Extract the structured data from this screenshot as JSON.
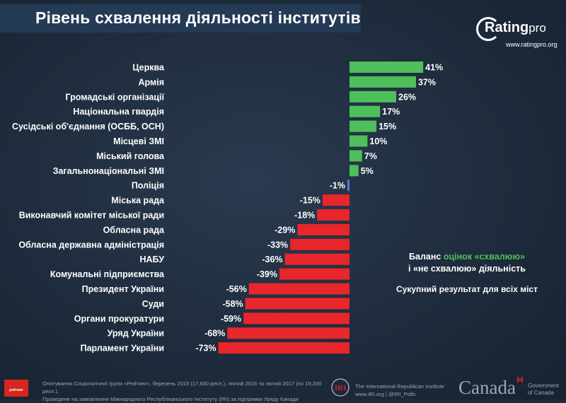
{
  "header": {
    "title": "Рівень схвалення діяльності інститутів",
    "logo_brand": "Rating",
    "logo_brand_suffix": "pro",
    "logo_url": "www.ratingpro.org"
  },
  "legend": {
    "line1_prefix": "Баланс ",
    "line1_accent": "оцінок «схвалюю»",
    "line2": "і «не схвалюю» діяльність",
    "subtitle": "Сукупний результат для всіх міст"
  },
  "footer": {
    "badge_text": "рейтинг",
    "note_line1": "Опитування Соціологічної групи «Рейтинг», березень 2015 (17,600 респ.), лютий 2016 та лютий 2017 (по 19,200 респ.).",
    "note_line2": "Проведене на замовлення Міжнародного Республіканського Інституту (IRI) за підтримки Уряду Канади",
    "iri_line1": "The International Republican Institute",
    "iri_line2": "www.IRI.org | @IRI_Polls",
    "canada_wordmark": "Canada",
    "gov_line1": "Government",
    "gov_line2": "of Canada"
  },
  "colors": {
    "positive": "#4fbf5a",
    "negative": "#e8262b",
    "near_zero": "#4a7fd4",
    "text": "#ffffff"
  },
  "chart_data": {
    "type": "bar",
    "orientation": "horizontal",
    "title": "Рівень схвалення діяльності інститутів",
    "categories": [
      "Церква",
      "Армія",
      "Громадські організації",
      "Національна гвардія",
      "Сусідські об'єднання (ОСББ, ОСН)",
      "Місцеві ЗМІ",
      "Міський голова",
      "Загальнонаціональні ЗМІ",
      "Поліція",
      "Міська рада",
      "Виконавчий комітет міської ради",
      "Обласна рада",
      "Обласна державна адміністрація",
      "НАБУ",
      "Комунальні підприємства",
      "Президент України",
      "Суди",
      "Органи прокуратури",
      "Уряд України",
      "Парламент України"
    ],
    "values": [
      41,
      37,
      26,
      17,
      15,
      10,
      7,
      5,
      -1,
      -15,
      -18,
      -29,
      -33,
      -36,
      -39,
      -56,
      -58,
      -59,
      -68,
      -73
    ],
    "labels": [
      "41%",
      "37%",
      "26%",
      "17%",
      "15%",
      "10%",
      "7%",
      "5%",
      "-1%",
      "-15%",
      "-18%",
      "-29%",
      "-33%",
      "-36%",
      "-39%",
      "-56%",
      "-58%",
      "-59%",
      "-68%",
      "-73%"
    ],
    "unit": "%",
    "xlim": [
      -75,
      45
    ],
    "grid": false,
    "legend_position": "right"
  }
}
